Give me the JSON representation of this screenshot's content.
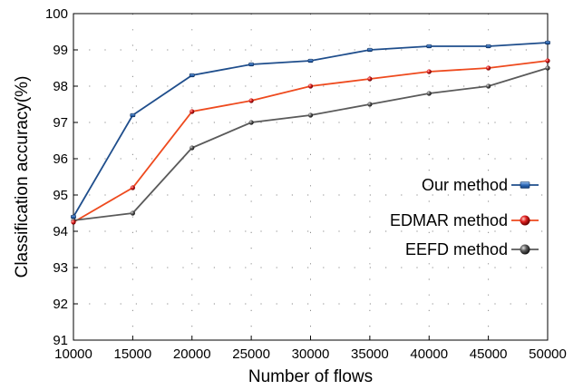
{
  "chart_data": {
    "type": "line",
    "xlabel": "Number of flows",
    "ylabel": "Classification accuracy(%)",
    "x": [
      10000,
      15000,
      20000,
      25000,
      30000,
      35000,
      40000,
      45000,
      50000
    ],
    "xlim": [
      10000,
      50000
    ],
    "ylim": [
      91,
      100
    ],
    "x_ticks": [
      "10000",
      "15000",
      "20000",
      "25000",
      "30000",
      "35000",
      "40000",
      "45000",
      "50000"
    ],
    "y_ticks": [
      "91",
      "92",
      "93",
      "94",
      "95",
      "96",
      "97",
      "98",
      "99",
      "100"
    ],
    "grid": "dotted",
    "legend_position": "right",
    "series": [
      {
        "name": "Our method",
        "color": "#1f4e8c",
        "marker": "square",
        "values": [
          94.4,
          97.2,
          98.3,
          98.6,
          98.7,
          99.0,
          99.1,
          99.1,
          99.2
        ]
      },
      {
        "name": "EDMAR method",
        "color": "#ee4a1e",
        "marker": "sphere-red",
        "values": [
          94.25,
          95.2,
          97.3,
          97.6,
          98.0,
          98.2,
          98.4,
          98.5,
          98.7
        ]
      },
      {
        "name": "EEFD method",
        "color": "#5a5a5a",
        "marker": "sphere-gray",
        "values": [
          94.3,
          94.5,
          96.3,
          97.0,
          97.2,
          97.5,
          97.8,
          98.0,
          98.5
        ]
      }
    ]
  }
}
